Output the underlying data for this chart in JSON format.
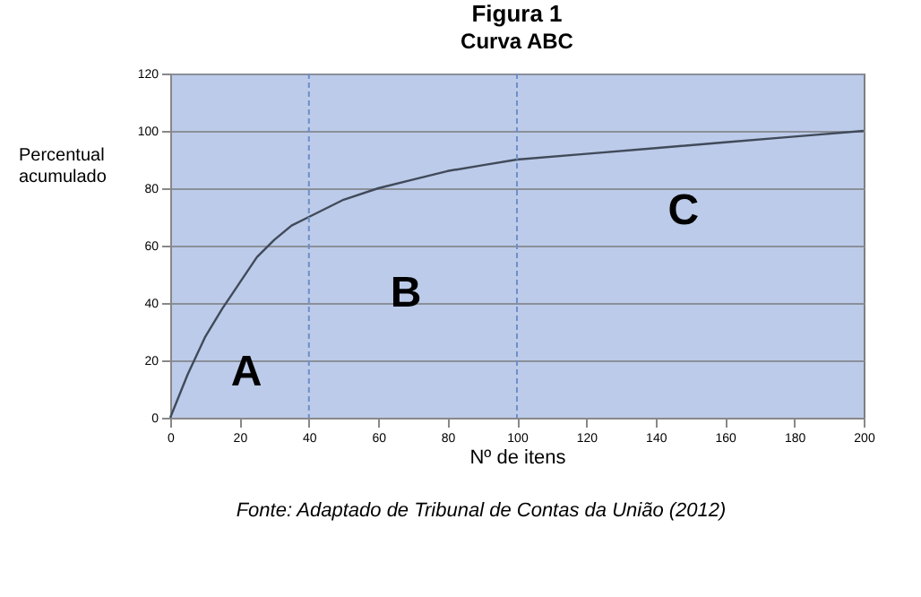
{
  "chart_data": {
    "type": "line",
    "title": "Figura 1",
    "subtitle": "Curva ABC",
    "xlabel": "Nº de itens",
    "ylabel": "Percentual acumulado",
    "x": [
      0,
      5,
      10,
      15,
      20,
      25,
      30,
      35,
      40,
      50,
      60,
      70,
      80,
      90,
      100,
      120,
      140,
      160,
      180,
      200
    ],
    "series": [
      {
        "color": "#404a5a",
        "values": [
          0,
          15,
          28,
          38,
          47,
          56,
          62,
          67,
          70,
          76,
          80,
          83,
          86,
          88,
          90,
          92,
          94,
          96,
          98,
          100
        ]
      }
    ],
    "xlim": [
      0,
      200
    ],
    "xticks": [
      0,
      20,
      40,
      60,
      80,
      100,
      120,
      140,
      160,
      180,
      200
    ],
    "ylim": [
      0,
      120
    ],
    "yticks": [
      0,
      20,
      40,
      60,
      80,
      100,
      120
    ],
    "grid": "y",
    "marker": "none",
    "line_style": "solid",
    "ref_lines": [
      {
        "axis": "x",
        "value": 40,
        "color": "#6f8fc8",
        "line_style": "dashed"
      },
      {
        "axis": "x",
        "value": 100,
        "color": "#6f8fc8",
        "line_style": "dashed"
      }
    ],
    "annotations": [
      "A",
      "B",
      "C",
      "Fonte: Adaptado de Tribunal de Contas da União (2012)"
    ]
  }
}
